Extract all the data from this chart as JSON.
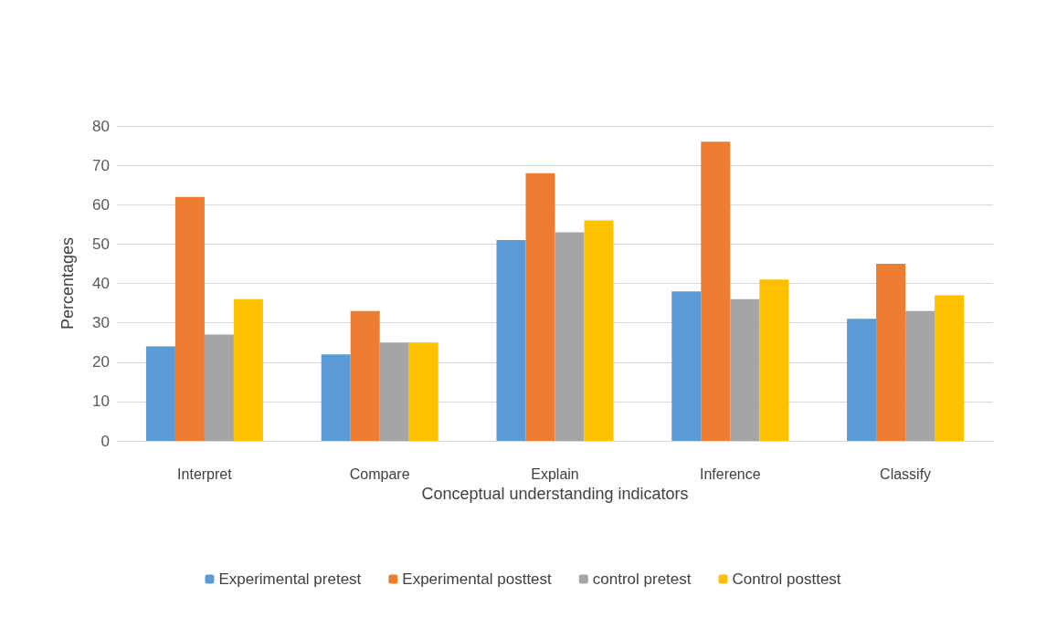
{
  "chart_data": {
    "type": "bar",
    "xlabel": "Conceptual understanding indicators",
    "ylabel": "Percentages",
    "categories": [
      "Interpret",
      "Compare",
      "Explain",
      "Inference",
      "Classify"
    ],
    "series": [
      {
        "name": "Experimental pretest",
        "color": "#5b9bd5",
        "values": [
          24,
          22,
          51,
          38,
          31
        ]
      },
      {
        "name": "Experimental posttest",
        "color": "#ed7d31",
        "values": [
          62,
          33,
          68,
          76,
          45
        ]
      },
      {
        "name": "control pretest",
        "color": "#a5a5a5",
        "values": [
          27,
          25,
          53,
          36,
          33
        ]
      },
      {
        "name": "Control posttest",
        "color": "#ffc000",
        "values": [
          36,
          25,
          56,
          41,
          37
        ]
      }
    ],
    "ylim": [
      0,
      80
    ],
    "yticks": [
      0,
      10,
      20,
      30,
      40,
      50,
      60,
      70,
      80
    ],
    "grid": "y",
    "legend": "bottom"
  }
}
